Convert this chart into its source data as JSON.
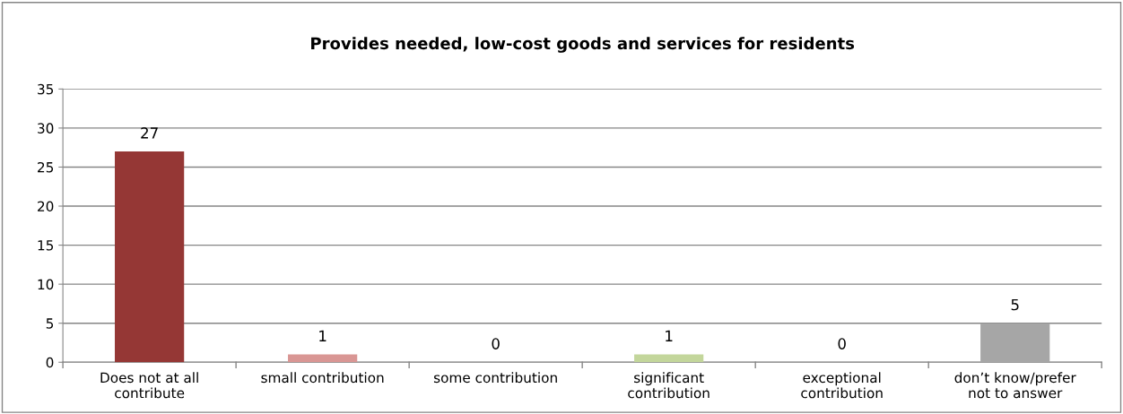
{
  "chart_data": {
    "type": "bar",
    "title": "Provides needed, low-cost goods and services for residents",
    "categories": [
      "Does not at all\ncontribute",
      "small contribution",
      "some contribution",
      "significant\ncontribution",
      "exceptional\ncontribution",
      "don’t know/prefer\nnot to answer"
    ],
    "values": [
      27,
      1,
      0,
      1,
      0,
      5
    ],
    "colors": [
      "#953735",
      "#d99694",
      "#e6b9b8",
      "#c3d69b",
      "#b9cde5",
      "#a6a6a6"
    ],
    "ylim": [
      0,
      35
    ],
    "yticks": [
      0,
      5,
      10,
      15,
      20,
      25,
      30,
      35
    ],
    "grid": "y",
    "data_labels": true
  }
}
